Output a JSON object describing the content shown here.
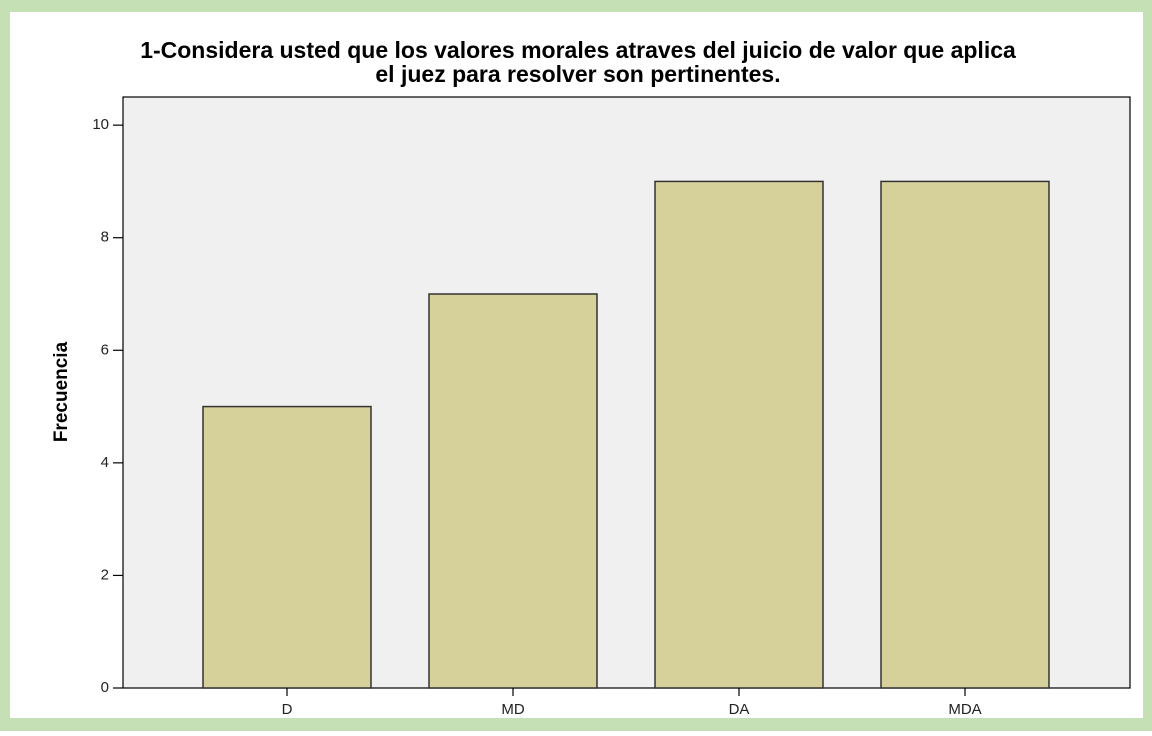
{
  "chart_data": {
    "type": "bar",
    "title": [
      "1-Considera usted que los valores morales atraves del juicio de valor que aplica",
      "el juez para resolver son pertinentes."
    ],
    "y_label": "Frecuencia",
    "categories": [
      "D",
      "MD",
      "DA",
      "MDA"
    ],
    "values": [
      5,
      7,
      9,
      9
    ],
    "color": "#d6d19b",
    "ylim": [
      0,
      10.5
    ],
    "yticks": [
      0,
      2,
      4,
      6,
      8,
      10
    ]
  }
}
